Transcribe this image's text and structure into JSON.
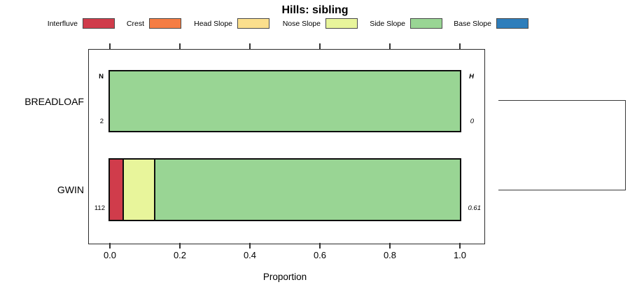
{
  "title": "Hills: sibling",
  "legend": {
    "items": [
      {
        "label": "Interfluve",
        "color": "#D03C4B"
      },
      {
        "label": "Crest",
        "color": "#F57D43"
      },
      {
        "label": "Head Slope",
        "color": "#FBDF8D"
      },
      {
        "label": "Nose Slope",
        "color": "#E8F59B"
      },
      {
        "label": "Side Slope",
        "color": "#99D594"
      },
      {
        "label": "Base Slope",
        "color": "#2E7EBB"
      }
    ]
  },
  "axis": {
    "label": "Proportion",
    "ticks": [
      "0.0",
      "0.2",
      "0.4",
      "0.6",
      "0.8",
      "1.0"
    ]
  },
  "annotations": {
    "n_header": "N",
    "h_header": "H"
  },
  "chart_data": {
    "type": "bar",
    "orientation": "horizontal",
    "stacked": true,
    "title": "Hills: sibling",
    "xlabel": "Proportion",
    "xlim": [
      0,
      1
    ],
    "legend_position": "top",
    "grid": false,
    "right_dendrogram": true,
    "categories": [
      "BREADLOAF",
      "GWIN"
    ],
    "series": [
      {
        "name": "Interfluve",
        "values": [
          0,
          0.035
        ]
      },
      {
        "name": "Crest",
        "values": [
          0,
          0
        ]
      },
      {
        "name": "Head Slope",
        "values": [
          0,
          0
        ]
      },
      {
        "name": "Nose Slope",
        "values": [
          0,
          0.09
        ]
      },
      {
        "name": "Side Slope",
        "values": [
          1.0,
          0.875
        ]
      },
      {
        "name": "Base Slope",
        "values": [
          0,
          0
        ]
      }
    ],
    "rows": [
      {
        "label": "BREADLOAF",
        "n": 2,
        "h": 0,
        "segments": [
          {
            "class": "Side Slope",
            "value": 1.0
          }
        ]
      },
      {
        "label": "GWIN",
        "n": 112,
        "h": 0.61,
        "segments": [
          {
            "class": "Interfluve",
            "value": 0.035
          },
          {
            "class": "Nose Slope",
            "value": 0.09
          },
          {
            "class": "Side Slope",
            "value": 0.875
          }
        ]
      }
    ]
  }
}
